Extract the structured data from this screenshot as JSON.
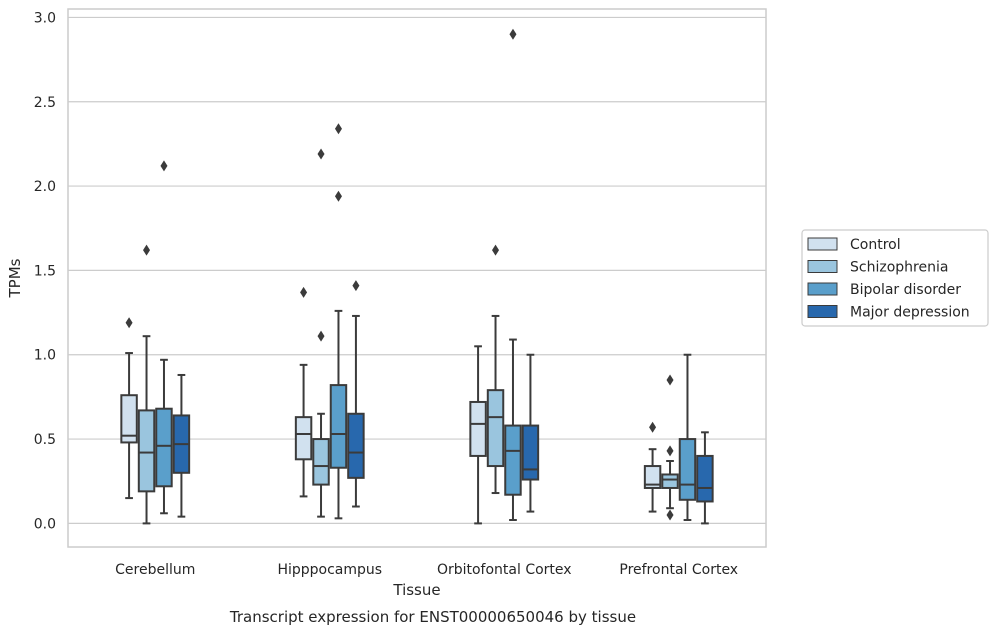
{
  "chart_data": {
    "type": "box",
    "xlabel": "Tissue",
    "ylabel": "TPMs",
    "caption": "Transcript expression for ENST00000650046 by tissue",
    "ylim": [
      -0.14,
      3.05
    ],
    "yticks": [
      "0.0",
      "0.5",
      "1.0",
      "1.5",
      "2.0",
      "2.5",
      "3.0"
    ],
    "grid": true,
    "legend_position": "right",
    "categories": [
      "Cerebellum",
      "Hipppocampus",
      "Orbitofontal Cortex",
      "Prefrontal Cortex"
    ],
    "series": [
      {
        "name": "Control",
        "color": "#d1e1ef",
        "boxes": [
          {
            "whisker_low": 0.15,
            "q1": 0.48,
            "median": 0.52,
            "q3": 0.76,
            "whisker_high": 1.01,
            "outliers": [
              1.19
            ]
          },
          {
            "whisker_low": 0.16,
            "q1": 0.38,
            "median": 0.53,
            "q3": 0.63,
            "whisker_high": 0.94,
            "outliers": [
              1.37
            ]
          },
          {
            "whisker_low": 0.0,
            "q1": 0.4,
            "median": 0.59,
            "q3": 0.72,
            "whisker_high": 1.05,
            "outliers": []
          },
          {
            "whisker_low": 0.07,
            "q1": 0.21,
            "median": 0.23,
            "q3": 0.34,
            "whisker_high": 0.44,
            "outliers": [
              0.57
            ]
          }
        ]
      },
      {
        "name": "Schizophrenia",
        "color": "#9ac5de",
        "boxes": [
          {
            "whisker_low": 0.0,
            "q1": 0.19,
            "median": 0.42,
            "q3": 0.67,
            "whisker_high": 1.11,
            "outliers": [
              1.62
            ]
          },
          {
            "whisker_low": 0.04,
            "q1": 0.23,
            "median": 0.34,
            "q3": 0.5,
            "whisker_high": 0.65,
            "outliers": [
              1.11,
              2.19
            ]
          },
          {
            "whisker_low": 0.18,
            "q1": 0.34,
            "median": 0.63,
            "q3": 0.79,
            "whisker_high": 1.23,
            "outliers": [
              1.62
            ]
          },
          {
            "whisker_low": 0.09,
            "q1": 0.21,
            "median": 0.26,
            "q3": 0.29,
            "whisker_high": 0.37,
            "outliers": [
              0.05,
              0.43,
              0.85
            ]
          }
        ]
      },
      {
        "name": "Bipolar disorder",
        "color": "#5a9fcb",
        "boxes": [
          {
            "whisker_low": 0.06,
            "q1": 0.22,
            "median": 0.46,
            "q3": 0.68,
            "whisker_high": 0.97,
            "outliers": [
              2.12
            ]
          },
          {
            "whisker_low": 0.03,
            "q1": 0.33,
            "median": 0.53,
            "q3": 0.82,
            "whisker_high": 1.26,
            "outliers": [
              1.94,
              2.34
            ]
          },
          {
            "whisker_low": 0.02,
            "q1": 0.17,
            "median": 0.43,
            "q3": 0.58,
            "whisker_high": 1.09,
            "outliers": [
              2.9
            ]
          },
          {
            "whisker_low": 0.02,
            "q1": 0.14,
            "median": 0.23,
            "q3": 0.5,
            "whisker_high": 1.0,
            "outliers": []
          }
        ]
      },
      {
        "name": "Major depression",
        "color": "#2868ad",
        "boxes": [
          {
            "whisker_low": 0.04,
            "q1": 0.3,
            "median": 0.47,
            "q3": 0.64,
            "whisker_high": 0.88,
            "outliers": []
          },
          {
            "whisker_low": 0.1,
            "q1": 0.27,
            "median": 0.42,
            "q3": 0.65,
            "whisker_high": 1.23,
            "outliers": [
              1.41
            ]
          },
          {
            "whisker_low": 0.07,
            "q1": 0.26,
            "median": 0.32,
            "q3": 0.58,
            "whisker_high": 1.0,
            "outliers": []
          },
          {
            "whisker_low": 0.0,
            "q1": 0.13,
            "median": 0.21,
            "q3": 0.4,
            "whisker_high": 0.54,
            "outliers": []
          }
        ]
      }
    ]
  }
}
